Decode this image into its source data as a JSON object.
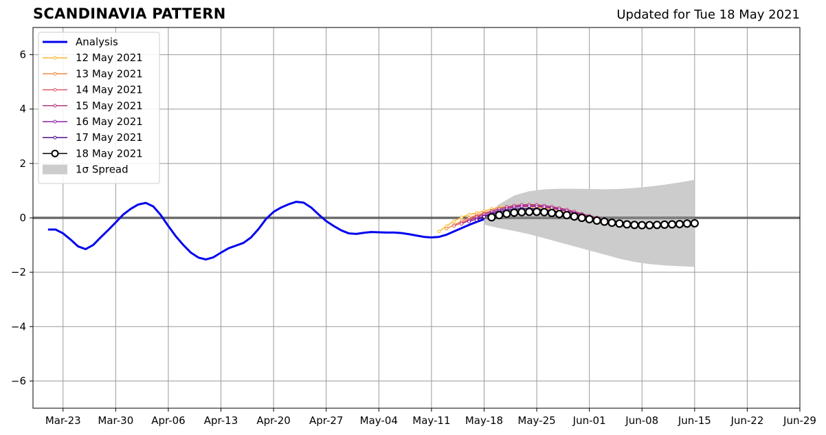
{
  "page": {
    "title": "SCANDINAVIA PATTERN",
    "updated": "Updated for Tue 18 May 2021"
  },
  "chart_data": {
    "type": "line",
    "title": "SCANDINAVIA PATTERN",
    "subtitle": "Updated for Tue 18 May 2021",
    "xlabel": "",
    "ylabel": "",
    "x_axis_type": "date",
    "xlim": [
      "2021-03-19",
      "2021-06-29"
    ],
    "ylim": [
      -7,
      7
    ],
    "x_ticks": [
      "2021-03-23",
      "2021-03-30",
      "2021-04-06",
      "2021-04-13",
      "2021-04-20",
      "2021-04-27",
      "2021-05-04",
      "2021-05-11",
      "2021-05-18",
      "2021-05-25",
      "2021-06-01",
      "2021-06-08",
      "2021-06-15",
      "2021-06-22",
      "2021-06-29"
    ],
    "x_tick_labels": [
      "Mar-23",
      "Mar-30",
      "Apr-06",
      "Apr-13",
      "Apr-20",
      "Apr-27",
      "May-04",
      "May-11",
      "May-18",
      "May-25",
      "Jun-01",
      "Jun-08",
      "Jun-15",
      "Jun-22",
      "Jun-29"
    ],
    "y_ticks": [
      -6,
      -4,
      -2,
      0,
      2,
      4,
      6
    ],
    "y_tick_labels": [
      "−6",
      "−4",
      "−2",
      "0",
      "2",
      "4",
      "6"
    ],
    "grid": true,
    "legend_position": "top-left",
    "legend": [
      "Analysis",
      "12 May 2021",
      "13 May 2021",
      "14 May 2021",
      "15 May 2021",
      "16 May 2021",
      "17 May 2021",
      "18 May 2021",
      "1σ Spread"
    ],
    "series": [
      {
        "name": "Analysis",
        "color": "#0000ee",
        "style": "thick-line",
        "x": [
          "2021-03-21",
          "2021-03-22",
          "2021-03-23",
          "2021-03-24",
          "2021-03-25",
          "2021-03-26",
          "2021-03-27",
          "2021-03-28",
          "2021-03-29",
          "2021-03-30",
          "2021-03-31",
          "2021-04-01",
          "2021-04-02",
          "2021-04-03",
          "2021-04-04",
          "2021-04-05",
          "2021-04-06",
          "2021-04-07",
          "2021-04-08",
          "2021-04-09",
          "2021-04-10",
          "2021-04-11",
          "2021-04-12",
          "2021-04-13",
          "2021-04-14",
          "2021-04-15",
          "2021-04-16",
          "2021-04-17",
          "2021-04-18",
          "2021-04-19",
          "2021-04-20",
          "2021-04-21",
          "2021-04-22",
          "2021-04-23",
          "2021-04-24",
          "2021-04-25",
          "2021-04-26",
          "2021-04-27",
          "2021-04-28",
          "2021-04-29",
          "2021-04-30",
          "2021-05-01",
          "2021-05-02",
          "2021-05-03",
          "2021-05-04",
          "2021-05-05",
          "2021-05-06",
          "2021-05-07",
          "2021-05-08",
          "2021-05-09",
          "2021-05-10",
          "2021-05-11",
          "2021-05-12",
          "2021-05-13",
          "2021-05-14",
          "2021-05-15",
          "2021-05-16",
          "2021-05-17",
          "2021-05-18"
        ],
        "y": [
          -0.43,
          -0.43,
          -0.57,
          -0.8,
          -1.05,
          -1.15,
          -1.0,
          -0.72,
          -0.45,
          -0.17,
          0.12,
          0.33,
          0.49,
          0.55,
          0.42,
          0.1,
          -0.3,
          -0.68,
          -1.0,
          -1.28,
          -1.46,
          -1.53,
          -1.45,
          -1.28,
          -1.12,
          -1.02,
          -0.92,
          -0.72,
          -0.41,
          -0.04,
          0.22,
          0.38,
          0.5,
          0.59,
          0.56,
          0.38,
          0.12,
          -0.12,
          -0.3,
          -0.46,
          -0.57,
          -0.59,
          -0.55,
          -0.52,
          -0.53,
          -0.54,
          -0.54,
          -0.56,
          -0.6,
          -0.65,
          -0.7,
          -0.72,
          -0.7,
          -0.62,
          -0.5,
          -0.38,
          -0.26,
          -0.15,
          -0.05
        ]
      },
      {
        "name": "12 May 2021",
        "color": "#fcb42b",
        "style": "dots",
        "x": [
          "2021-05-12",
          "2021-05-13",
          "2021-05-14",
          "2021-05-15",
          "2021-05-16",
          "2021-05-17",
          "2021-05-18",
          "2021-05-19",
          "2021-05-20",
          "2021-05-21",
          "2021-05-22",
          "2021-05-23",
          "2021-05-24",
          "2021-05-25",
          "2021-05-26",
          "2021-05-27",
          "2021-05-28",
          "2021-05-29",
          "2021-05-30",
          "2021-05-31",
          "2021-06-01",
          "2021-06-02",
          "2021-06-03",
          "2021-06-04",
          "2021-06-05",
          "2021-06-06",
          "2021-06-07",
          "2021-06-08",
          "2021-06-09"
        ],
        "y": [
          -0.5,
          -0.3,
          -0.12,
          0.02,
          0.12,
          0.18,
          0.25,
          0.33,
          0.38,
          0.41,
          0.42,
          0.42,
          0.41,
          0.39,
          0.36,
          0.33,
          0.28,
          0.22,
          0.15,
          0.08,
          0.02,
          -0.04,
          -0.09,
          -0.13,
          -0.16,
          -0.18,
          -0.19,
          -0.2,
          -0.2
        ]
      },
      {
        "name": "13 May 2021",
        "color": "#f3873e",
        "style": "dots",
        "x": [
          "2021-05-13",
          "2021-05-14",
          "2021-05-15",
          "2021-05-16",
          "2021-05-17",
          "2021-05-18",
          "2021-05-19",
          "2021-05-20",
          "2021-05-21",
          "2021-05-22",
          "2021-05-23",
          "2021-05-24",
          "2021-05-25",
          "2021-05-26",
          "2021-05-27",
          "2021-05-28",
          "2021-05-29",
          "2021-05-30",
          "2021-05-31",
          "2021-06-01",
          "2021-06-02",
          "2021-06-03",
          "2021-06-04",
          "2021-06-05",
          "2021-06-06",
          "2021-06-07",
          "2021-06-08",
          "2021-06-09",
          "2021-06-10"
        ],
        "y": [
          -0.4,
          -0.26,
          -0.12,
          0.0,
          0.1,
          0.18,
          0.26,
          0.33,
          0.38,
          0.41,
          0.43,
          0.43,
          0.42,
          0.4,
          0.36,
          0.31,
          0.25,
          0.18,
          0.11,
          0.04,
          -0.02,
          -0.08,
          -0.12,
          -0.16,
          -0.18,
          -0.2,
          -0.21,
          -0.21,
          -0.2
        ]
      },
      {
        "name": "14 May 2021",
        "color": "#de5a6a",
        "style": "dots",
        "x": [
          "2021-05-14",
          "2021-05-15",
          "2021-05-16",
          "2021-05-17",
          "2021-05-18",
          "2021-05-19",
          "2021-05-20",
          "2021-05-21",
          "2021-05-22",
          "2021-05-23",
          "2021-05-24",
          "2021-05-25",
          "2021-05-26",
          "2021-05-27",
          "2021-05-28",
          "2021-05-29",
          "2021-05-30",
          "2021-05-31",
          "2021-06-01",
          "2021-06-02",
          "2021-06-03",
          "2021-06-04",
          "2021-06-05",
          "2021-06-06",
          "2021-06-07",
          "2021-06-08",
          "2021-06-09",
          "2021-06-10",
          "2021-06-11"
        ],
        "y": [
          -0.3,
          -0.18,
          -0.06,
          0.05,
          0.15,
          0.25,
          0.33,
          0.39,
          0.43,
          0.45,
          0.46,
          0.45,
          0.43,
          0.39,
          0.34,
          0.28,
          0.21,
          0.14,
          0.07,
          0.0,
          -0.06,
          -0.11,
          -0.15,
          -0.18,
          -0.2,
          -0.21,
          -0.22,
          -0.22,
          -0.21
        ]
      },
      {
        "name": "15 May 2021",
        "color": "#b5367a",
        "style": "dots",
        "x": [
          "2021-05-15",
          "2021-05-16",
          "2021-05-17",
          "2021-05-18",
          "2021-05-19",
          "2021-05-20",
          "2021-05-21",
          "2021-05-22",
          "2021-05-23",
          "2021-05-24",
          "2021-05-25",
          "2021-05-26",
          "2021-05-27",
          "2021-05-28",
          "2021-05-29",
          "2021-05-30",
          "2021-05-31",
          "2021-06-01",
          "2021-06-02",
          "2021-06-03",
          "2021-06-04",
          "2021-06-05",
          "2021-06-06",
          "2021-06-07",
          "2021-06-08",
          "2021-06-09",
          "2021-06-10",
          "2021-06-11",
          "2021-06-12"
        ],
        "y": [
          -0.22,
          -0.1,
          0.02,
          0.13,
          0.24,
          0.33,
          0.4,
          0.45,
          0.48,
          0.49,
          0.48,
          0.45,
          0.41,
          0.36,
          0.3,
          0.23,
          0.15,
          0.08,
          0.01,
          -0.05,
          -0.1,
          -0.14,
          -0.18,
          -0.2,
          -0.22,
          -0.23,
          -0.23,
          -0.22,
          -0.21
        ]
      },
      {
        "name": "16 May 2021",
        "color": "#8c1eaa",
        "style": "dots",
        "x": [
          "2021-05-16",
          "2021-05-17",
          "2021-05-18",
          "2021-05-19",
          "2021-05-20",
          "2021-05-21",
          "2021-05-22",
          "2021-05-23",
          "2021-05-24",
          "2021-05-25",
          "2021-05-26",
          "2021-05-27",
          "2021-05-28",
          "2021-05-29",
          "2021-05-30",
          "2021-05-31",
          "2021-06-01",
          "2021-06-02",
          "2021-06-03",
          "2021-06-04",
          "2021-06-05",
          "2021-06-06",
          "2021-06-07",
          "2021-06-08",
          "2021-06-09",
          "2021-06-10",
          "2021-06-11",
          "2021-06-12",
          "2021-06-13"
        ],
        "y": [
          -0.14,
          -0.04,
          0.07,
          0.18,
          0.27,
          0.34,
          0.39,
          0.42,
          0.43,
          0.42,
          0.4,
          0.36,
          0.31,
          0.25,
          0.18,
          0.11,
          0.04,
          -0.03,
          -0.09,
          -0.14,
          -0.18,
          -0.21,
          -0.23,
          -0.24,
          -0.24,
          -0.23,
          -0.22,
          -0.21,
          -0.2
        ]
      },
      {
        "name": "17 May 2021",
        "color": "#4b0f8c",
        "style": "dots",
        "x": [
          "2021-05-17",
          "2021-05-18",
          "2021-05-19",
          "2021-05-20",
          "2021-05-21",
          "2021-05-22",
          "2021-05-23",
          "2021-05-24",
          "2021-05-25",
          "2021-05-26",
          "2021-05-27",
          "2021-05-28",
          "2021-05-29",
          "2021-05-30",
          "2021-05-31",
          "2021-06-01",
          "2021-06-02",
          "2021-06-03",
          "2021-06-04",
          "2021-06-05",
          "2021-06-06",
          "2021-06-07",
          "2021-06-08",
          "2021-06-09",
          "2021-06-10",
          "2021-06-11",
          "2021-06-12",
          "2021-06-13",
          "2021-06-14"
        ],
        "y": [
          -0.08,
          0.04,
          0.14,
          0.22,
          0.28,
          0.32,
          0.34,
          0.34,
          0.33,
          0.3,
          0.26,
          0.21,
          0.15,
          0.09,
          0.03,
          -0.03,
          -0.09,
          -0.14,
          -0.18,
          -0.21,
          -0.23,
          -0.24,
          -0.25,
          -0.25,
          -0.24,
          -0.23,
          -0.22,
          -0.21,
          -0.2
        ]
      },
      {
        "name": "18 May 2021",
        "color": "#000000",
        "style": "circles",
        "x": [
          "2021-05-19",
          "2021-05-20",
          "2021-05-21",
          "2021-05-22",
          "2021-05-23",
          "2021-05-24",
          "2021-05-25",
          "2021-05-26",
          "2021-05-27",
          "2021-05-28",
          "2021-05-29",
          "2021-05-30",
          "2021-05-31",
          "2021-06-01",
          "2021-06-02",
          "2021-06-03",
          "2021-06-04",
          "2021-06-05",
          "2021-06-06",
          "2021-06-07",
          "2021-06-08",
          "2021-06-09",
          "2021-06-10",
          "2021-06-11",
          "2021-06-12",
          "2021-06-13",
          "2021-06-14",
          "2021-06-15"
        ],
        "y": [
          0.02,
          0.1,
          0.15,
          0.19,
          0.21,
          0.22,
          0.22,
          0.21,
          0.18,
          0.14,
          0.1,
          0.05,
          0.0,
          -0.05,
          -0.1,
          -0.14,
          -0.18,
          -0.21,
          -0.24,
          -0.26,
          -0.27,
          -0.27,
          -0.26,
          -0.25,
          -0.24,
          -0.23,
          -0.21,
          -0.2
        ]
      }
    ],
    "spread": {
      "name": "1σ Spread",
      "color": "#cccccc",
      "x": [
        "2021-05-18",
        "2021-05-20",
        "2021-05-22",
        "2021-05-24",
        "2021-05-26",
        "2021-05-28",
        "2021-05-30",
        "2021-06-01",
        "2021-06-03",
        "2021-06-05",
        "2021-06-07",
        "2021-06-09",
        "2021-06-11",
        "2021-06-13",
        "2021-06-15"
      ],
      "upper": [
        0.05,
        0.5,
        0.82,
        0.98,
        1.05,
        1.07,
        1.07,
        1.06,
        1.05,
        1.06,
        1.1,
        1.15,
        1.22,
        1.3,
        1.4
      ],
      "lower": [
        -0.25,
        -0.38,
        -0.48,
        -0.6,
        -0.75,
        -0.9,
        -1.05,
        -1.2,
        -1.35,
        -1.5,
        -1.62,
        -1.7,
        -1.75,
        -1.78,
        -1.8
      ]
    }
  }
}
